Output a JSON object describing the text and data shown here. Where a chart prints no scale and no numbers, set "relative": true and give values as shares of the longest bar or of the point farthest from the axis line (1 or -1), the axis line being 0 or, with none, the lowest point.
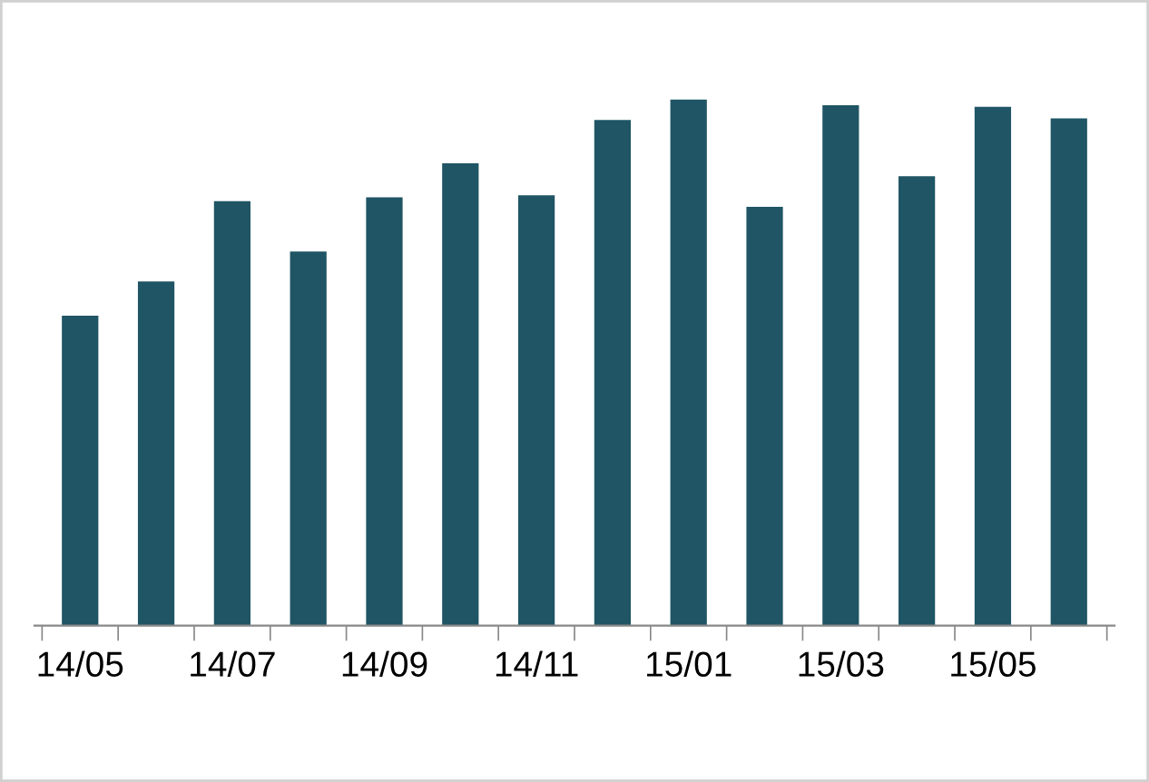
{
  "chart_data": {
    "type": "bar",
    "relative": true,
    "categories": [
      "14/05",
      null,
      "14/07",
      null,
      "14/09",
      null,
      "14/11",
      null,
      "15/01",
      null,
      "15/03",
      null,
      "15/05",
      null
    ],
    "values": [
      0.589,
      0.654,
      0.807,
      0.711,
      0.814,
      0.879,
      0.818,
      0.961,
      1,
      0.796,
      0.989,
      0.854,
      0.986,
      0.964
    ],
    "color": "#1f5564",
    "grid": false,
    "legend": false
  }
}
